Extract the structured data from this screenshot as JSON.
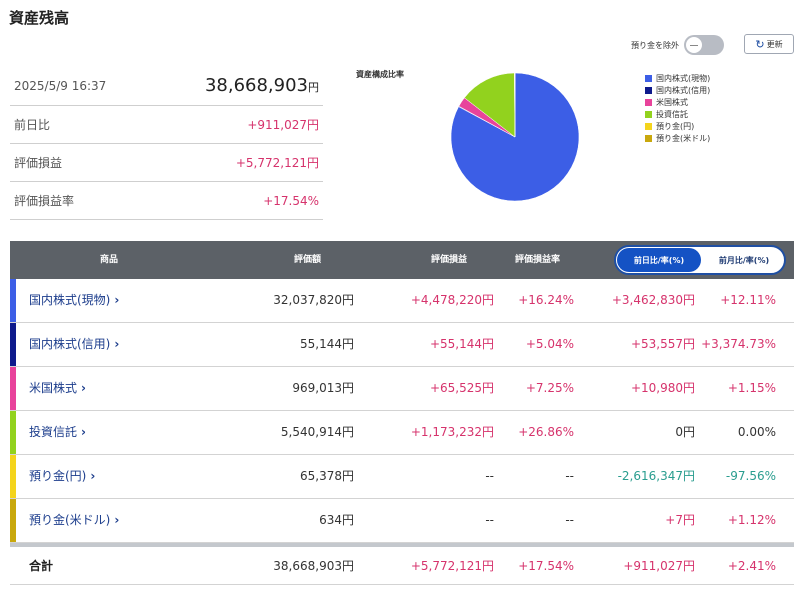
{
  "page": {
    "title": "資産残高"
  },
  "summary": {
    "date": "2025/5/9 16:37",
    "total": "38,668,903",
    "total_unit": "円",
    "rows": [
      {
        "label": "前日比",
        "value": "+911,027円"
      },
      {
        "label": "評価損益",
        "value": "+5,772,121円"
      },
      {
        "label": "評価損益率",
        "value": "+17.54%"
      }
    ]
  },
  "controls": {
    "exclude_deposit_label": "預り金を除外",
    "refresh_label": "更新"
  },
  "chart": {
    "title": "資産構成比率",
    "legend": [
      {
        "label": "国内株式(現物)",
        "color": "#3c5ee6"
      },
      {
        "label": "国内株式(信用)",
        "color": "#0e1a8c"
      },
      {
        "label": "米国株式",
        "color": "#e8439b"
      },
      {
        "label": "投資信託",
        "color": "#92d21e"
      },
      {
        "label": "預り金(円)",
        "color": "#f4d41c"
      },
      {
        "label": "預り金(米ドル)",
        "color": "#c9a80d"
      }
    ]
  },
  "chart_data": {
    "type": "pie",
    "categories": [
      "国内株式(現物)",
      "国内株式(信用)",
      "米国株式",
      "投資信託",
      "預り金(円)",
      "預り金(米ドル)"
    ],
    "values": [
      32037820,
      55144,
      969013,
      5540914,
      65378,
      634
    ],
    "colors": [
      "#3c5ee6",
      "#0e1a8c",
      "#e8439b",
      "#92d21e",
      "#f4d41c",
      "#c9a80d"
    ],
    "title": "資産構成比率",
    "legend_position": "right"
  },
  "table": {
    "headers": {
      "product": "商品",
      "value": "評価額",
      "pl": "評価損益",
      "pl_rate": "評価損益率"
    },
    "tabs": {
      "active": "前日比/率(%)",
      "inactive": "前月比/率(%)"
    },
    "rows": [
      {
        "name": "国内株式(現物)",
        "color": "#3c5ee6",
        "value": "32,037,820円",
        "pl": "+4,478,220円",
        "pl_rate": "+16.24%",
        "day": "+3,462,830円",
        "day_rate": "+12.11%",
        "day_sign": "pos"
      },
      {
        "name": "国内株式(信用)",
        "color": "#0e1a8c",
        "value": "55,144円",
        "pl": "+55,144円",
        "pl_rate": "+5.04%",
        "day": "+53,557円",
        "day_rate": "+3,374.73%",
        "day_sign": "pos"
      },
      {
        "name": "米国株式",
        "color": "#e8439b",
        "value": "969,013円",
        "pl": "+65,525円",
        "pl_rate": "+7.25%",
        "day": "+10,980円",
        "day_rate": "+1.15%",
        "day_sign": "pos"
      },
      {
        "name": "投資信託",
        "color": "#92d21e",
        "value": "5,540,914円",
        "pl": "+1,173,232円",
        "pl_rate": "+26.86%",
        "day": "0円",
        "day_rate": "0.00%",
        "day_sign": "zero"
      },
      {
        "name": "預り金(円)",
        "color": "#f4d41c",
        "value": "65,378円",
        "pl": "--",
        "pl_rate": "--",
        "day": "-2,616,347円",
        "day_rate": "-97.56%",
        "day_sign": "neg"
      },
      {
        "name": "預り金(米ドル)",
        "color": "#c9a80d",
        "value": "634円",
        "pl": "--",
        "pl_rate": "--",
        "day": "+7円",
        "day_rate": "+1.12%",
        "day_sign": "pos"
      }
    ],
    "total": {
      "label": "合計",
      "value": "38,668,903円",
      "pl": "+5,772,121円",
      "pl_rate": "+17.54%",
      "day": "+911,027円",
      "day_rate": "+2.41%"
    },
    "chevron": "›"
  }
}
